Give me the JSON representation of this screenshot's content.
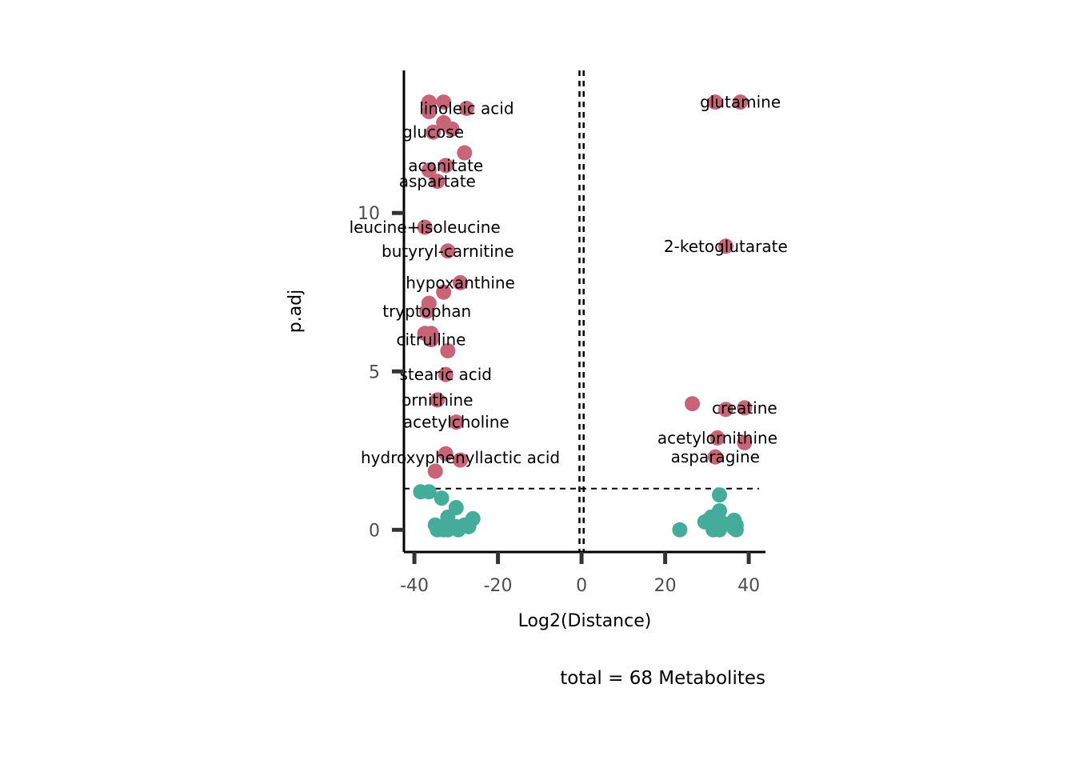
{
  "chart_data": {
    "type": "scatter",
    "title": "",
    "xlabel": "Log2(Distance)",
    "ylabel": "p.adj",
    "caption": "total = 68 Metabolites",
    "xlim": [
      -42.5,
      44
    ],
    "ylim": [
      -0.7,
      14.5
    ],
    "x_ticks": [
      -40,
      -20,
      0,
      20,
      40
    ],
    "y_ticks": [
      0,
      5,
      10
    ],
    "x_tick_labels": [
      "-40",
      "-20",
      "0",
      "20",
      "40"
    ],
    "y_tick_labels": [
      "0",
      "5",
      "10"
    ],
    "vlines": [
      -0.5,
      0.5
    ],
    "hline": 1.3,
    "grid": false,
    "legend": "none",
    "colors": {
      "significant": "#c86478",
      "not_significant": "#45ab9b",
      "axis": "#000000",
      "tick": "#333333"
    },
    "labels": [
      {
        "text": "linoleic acid",
        "x": -27.5,
        "y": 13.3
      },
      {
        "text": "glucose",
        "x": -35.5,
        "y": 12.55
      },
      {
        "text": "aconitate",
        "x": -32.5,
        "y": 11.5
      },
      {
        "text": "aspartate",
        "x": -34.5,
        "y": 11.0
      },
      {
        "text": "leucine+isoleucine",
        "x": -37.5,
        "y": 9.55
      },
      {
        "text": "butyryl-carnitine",
        "x": -32.0,
        "y": 8.8
      },
      {
        "text": "hypoxanthine",
        "x": -29.0,
        "y": 7.8
      },
      {
        "text": "tryptophan",
        "x": -37.0,
        "y": 6.9
      },
      {
        "text": "citrulline",
        "x": -36.0,
        "y": 6.0
      },
      {
        "text": "stearic acid",
        "x": -32.5,
        "y": 4.9
      },
      {
        "text": "ornithine",
        "x": -34.5,
        "y": 4.1
      },
      {
        "text": "acetylcholine",
        "x": -30.0,
        "y": 3.4
      },
      {
        "text": "hydroxyphenyllactic acid",
        "x": -29.0,
        "y": 2.28
      },
      {
        "text": "glutamine",
        "x": 38.0,
        "y": 13.5
      },
      {
        "text": "2-ketoglutarate",
        "x": 34.5,
        "y": 8.95
      },
      {
        "text": "creatine",
        "x": 39.0,
        "y": 3.85
      },
      {
        "text": "acetylornithine",
        "x": 32.5,
        "y": 2.9
      },
      {
        "text": "asparagine",
        "x": 32.0,
        "y": 2.3
      }
    ],
    "series": [
      {
        "color": "#c86478",
        "points": [
          [
            -36.5,
            13.5
          ],
          [
            -33.0,
            13.5
          ],
          [
            -27.5,
            13.3
          ],
          [
            -36.5,
            13.2
          ],
          [
            -33.0,
            12.85
          ],
          [
            -31.0,
            12.65
          ],
          [
            -35.5,
            12.55
          ],
          [
            -28.0,
            11.9
          ],
          [
            -32.5,
            11.5
          ],
          [
            -36.5,
            11.35
          ],
          [
            -34.5,
            11.0
          ],
          [
            -37.5,
            9.55
          ],
          [
            -32.0,
            8.8
          ],
          [
            -29.0,
            7.8
          ],
          [
            -33.0,
            7.5
          ],
          [
            -36.5,
            7.15
          ],
          [
            -37.0,
            6.9
          ],
          [
            -37.5,
            6.2
          ],
          [
            -36.0,
            6.2
          ],
          [
            -36.0,
            6.0
          ],
          [
            -32.0,
            5.65
          ],
          [
            -32.5,
            4.9
          ],
          [
            -34.5,
            4.1
          ],
          [
            -30.0,
            3.4
          ],
          [
            -32.5,
            2.4
          ],
          [
            -29.0,
            2.2
          ],
          [
            -35.0,
            1.85
          ],
          [
            32.0,
            13.5
          ],
          [
            38.0,
            13.5
          ],
          [
            34.5,
            8.95
          ],
          [
            26.5,
            3.98
          ],
          [
            34.5,
            3.8
          ],
          [
            39.0,
            3.85
          ],
          [
            32.5,
            2.9
          ],
          [
            39.0,
            2.75
          ],
          [
            32.0,
            2.3
          ]
        ]
      },
      {
        "color": "#45ab9b",
        "points": [
          [
            -38.5,
            1.2
          ],
          [
            -36.5,
            1.2
          ],
          [
            -33.5,
            1.0
          ],
          [
            -30.0,
            0.7
          ],
          [
            -32.0,
            0.4
          ],
          [
            -26.0,
            0.35
          ],
          [
            -35.0,
            0.15
          ],
          [
            -34.5,
            0.0
          ],
          [
            -33.0,
            0.0
          ],
          [
            -31.5,
            0.05
          ],
          [
            -30.0,
            0.1
          ],
          [
            -28.0,
            0.15
          ],
          [
            -32.0,
            0.0
          ],
          [
            -29.5,
            0.0
          ],
          [
            -27.0,
            0.1
          ],
          [
            -33.5,
            0.05
          ],
          [
            23.5,
            0.0
          ],
          [
            33.0,
            1.1
          ],
          [
            33.0,
            0.6
          ],
          [
            31.0,
            0.4
          ],
          [
            29.5,
            0.25
          ],
          [
            32.0,
            0.1
          ],
          [
            33.0,
            0.0
          ],
          [
            31.5,
            0.0
          ],
          [
            36.5,
            0.3
          ],
          [
            37.0,
            0.15
          ],
          [
            36.5,
            0.05
          ],
          [
            37.0,
            0.0
          ],
          [
            32.5,
            0.45
          ],
          [
            31.0,
            0.2
          ],
          [
            34.0,
            0.2
          ],
          [
            36.5,
            0.1
          ]
        ]
      }
    ]
  }
}
